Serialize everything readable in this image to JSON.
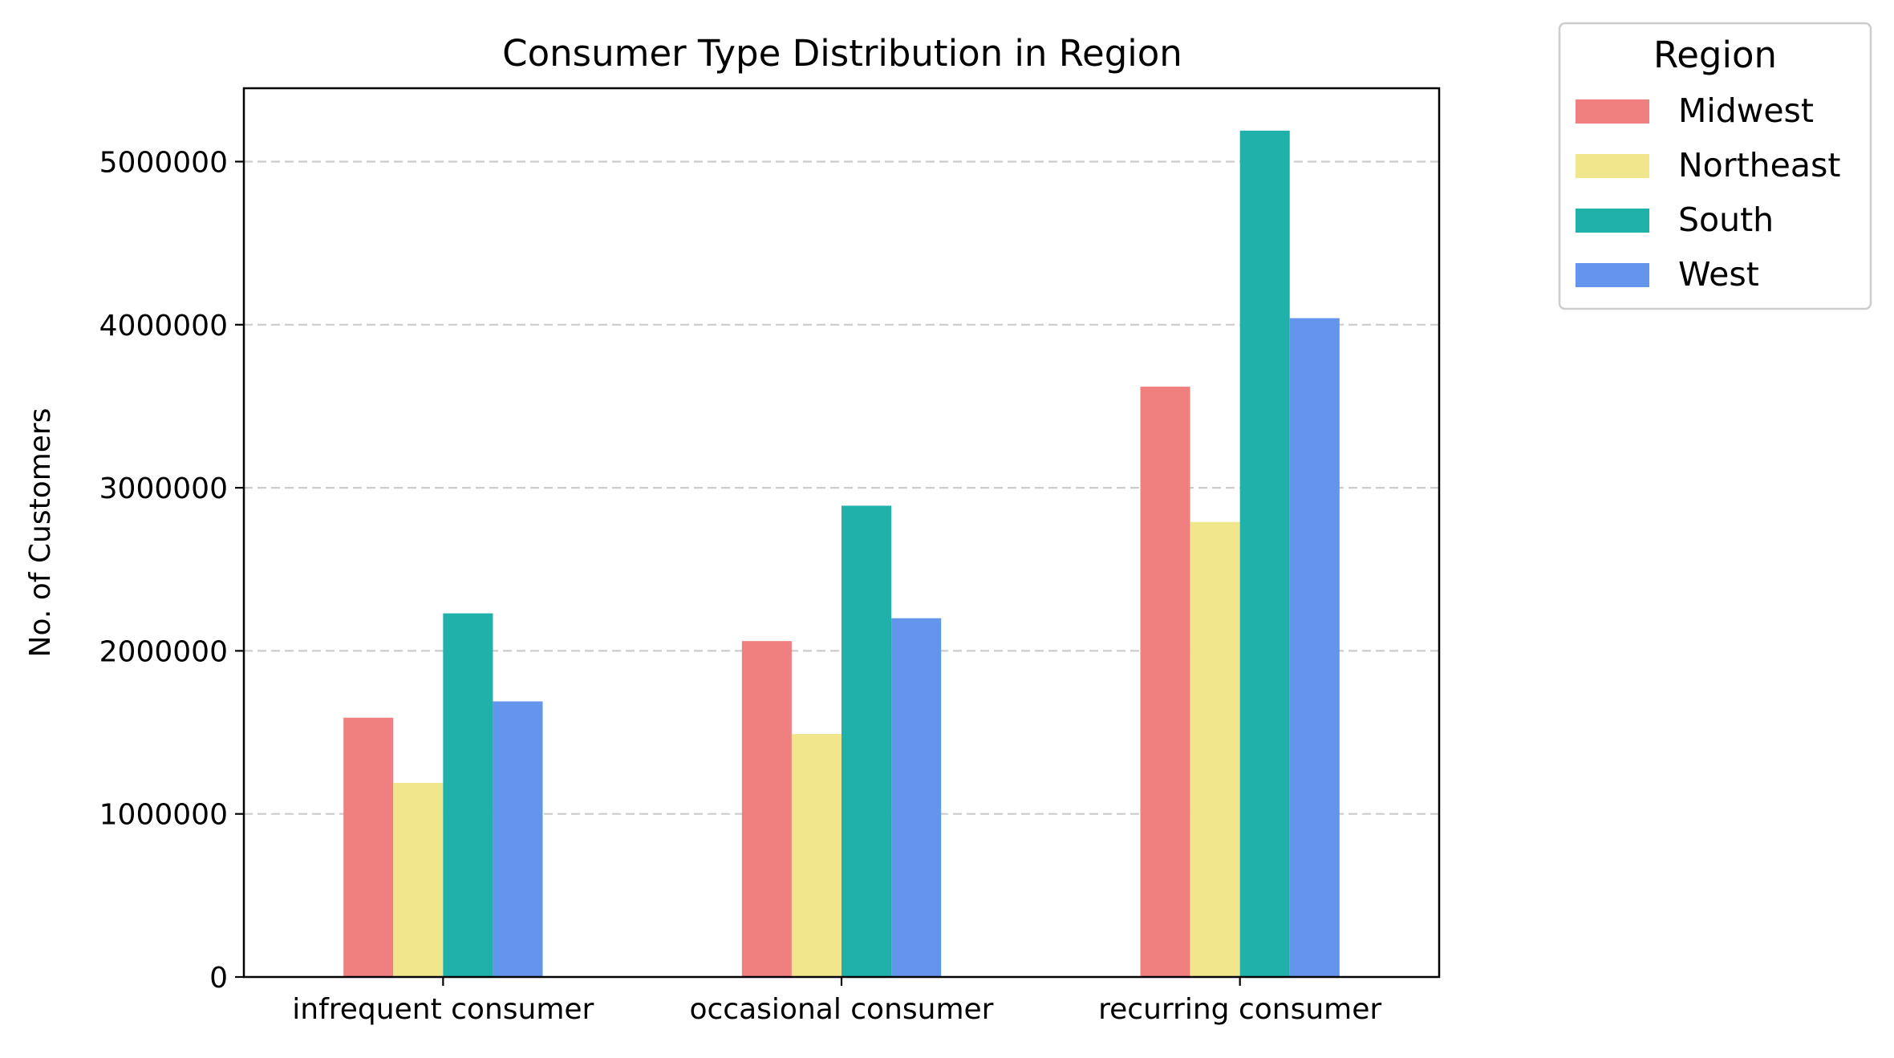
{
  "chart_data": {
    "type": "bar",
    "title": "Consumer Type Distribution in Region",
    "xlabel": "",
    "ylabel": "No. of Customers",
    "categories": [
      "infrequent consumer",
      "occasional consumer",
      "recurring consumer"
    ],
    "series": [
      {
        "name": "Midwest",
        "color": "#f08080",
        "values": [
          1590000,
          2060000,
          3620000
        ]
      },
      {
        "name": "Northeast",
        "color": "#f0e68c",
        "values": [
          1190000,
          1490000,
          2790000
        ]
      },
      {
        "name": "South",
        "color": "#20b2aa",
        "values": [
          2230000,
          2890000,
          5190000
        ]
      },
      {
        "name": "West",
        "color": "#6495ed",
        "values": [
          1690000,
          2200000,
          4040000
        ]
      }
    ],
    "ylim": [
      0,
      5450000
    ],
    "yticks": [
      0,
      1000000,
      2000000,
      3000000,
      4000000,
      5000000
    ],
    "ytick_labels": [
      "0",
      "1000000",
      "2000000",
      "3000000",
      "4000000",
      "5000000"
    ],
    "grid": "y, dashed",
    "legend": {
      "title": "Region",
      "placement": "outside upper right"
    }
  }
}
